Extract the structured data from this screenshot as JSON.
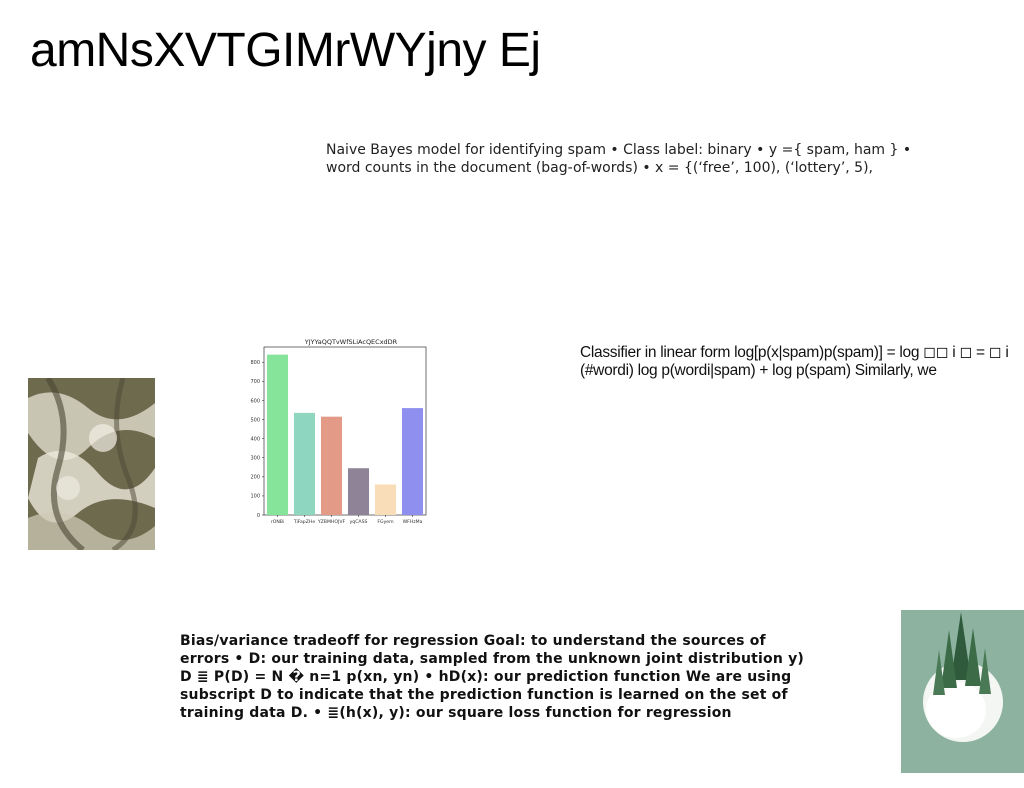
{
  "document": {
    "title": "amNsXVTGIMrWYjny Ej",
    "paragraph_spam": "Naive Bayes model for identifying spam • Class label: binary • y ={ spam, ham } • word counts in the document (bag-of-words) • x = {(‘free’, 100), (‘lottery’, 5),",
    "paragraph_classifier": "Classifier in linear form log[p(x|spam)p(spam)] = log ◻◻ i ◻ = ◻ i (#wordi) log p(wordi|spam) + log p(spam) Similarly, we",
    "paragraph_bias": "Bias/variance tradeoff for regression Goal: to understand the sources of errors • D: our training data, sampled from the unknown joint distribution y) D ≣ P(D) = N � n=1 p(xn, yn) • hD(x): our prediction function We are using subscript D to indicate that the prediction function is learned on the set of training data D. • ≣(h(x), y): our square loss function for regression"
  },
  "images": {
    "left_photo": "water-foam-texture-photo",
    "right_photo": "snowy-pine-trees-on-sage-background-photo"
  },
  "chart_data": {
    "type": "bar",
    "title": "YJYYaQQTvWfSLiAcQECxdDR",
    "categories": [
      "rONBi",
      "TiFapZHe",
      "YZBMHOJVF",
      "yqCASS",
      "FGyem",
      "WFHzMa"
    ],
    "values": [
      840,
      535,
      515,
      245,
      160,
      560
    ],
    "colors": [
      "#86e39a",
      "#8ed6c0",
      "#e39a86",
      "#8f8397",
      "#f8ddb8",
      "#8f8ff0"
    ],
    "ylim": [
      0,
      880
    ],
    "yticks": [
      0,
      100,
      200,
      300,
      400,
      500,
      600,
      700,
      800
    ],
    "grid": false
  }
}
